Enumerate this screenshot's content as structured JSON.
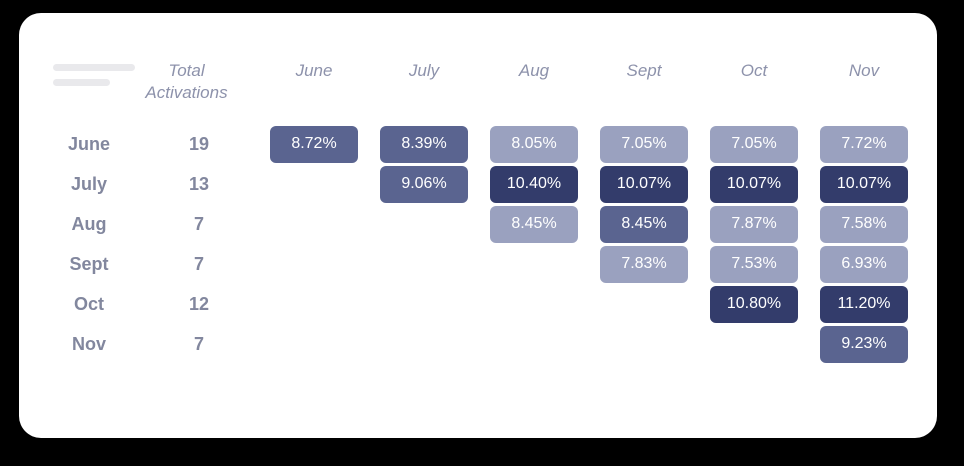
{
  "page": {
    "background": "#000000",
    "card_background": "#ffffff"
  },
  "colors": {
    "light": "#9aa1bf",
    "medium": "#5a6490",
    "dark": "#333c6b",
    "header_text": "#8d92ab",
    "label_text": "#82879e",
    "skeleton_bar": "#e9e9ec"
  },
  "header": {
    "total_label": "Total Activations",
    "months": [
      "June",
      "July",
      "Aug",
      "Sept",
      "Oct",
      "Nov"
    ]
  },
  "rows": [
    {
      "label": "June",
      "total": "19",
      "cells": [
        {
          "value": "8.72%",
          "shade": "medium"
        },
        {
          "value": "8.39%",
          "shade": "medium"
        },
        {
          "value": "8.05%",
          "shade": "light"
        },
        {
          "value": "7.05%",
          "shade": "light"
        },
        {
          "value": "7.05%",
          "shade": "light"
        },
        {
          "value": "7.72%",
          "shade": "light"
        }
      ]
    },
    {
      "label": "July",
      "total": "13",
      "cells": [
        null,
        {
          "value": "9.06%",
          "shade": "medium"
        },
        {
          "value": "10.40%",
          "shade": "dark"
        },
        {
          "value": "10.07%",
          "shade": "dark"
        },
        {
          "value": "10.07%",
          "shade": "dark"
        },
        {
          "value": "10.07%",
          "shade": "dark"
        }
      ]
    },
    {
      "label": "Aug",
      "total": "7",
      "cells": [
        null,
        null,
        {
          "value": "8.45%",
          "shade": "light"
        },
        {
          "value": "8.45%",
          "shade": "medium"
        },
        {
          "value": "7.87%",
          "shade": "light"
        },
        {
          "value": "7.58%",
          "shade": "light"
        }
      ]
    },
    {
      "label": "Sept",
      "total": "7",
      "cells": [
        null,
        null,
        null,
        {
          "value": "7.83%",
          "shade": "light"
        },
        {
          "value": "7.53%",
          "shade": "light"
        },
        {
          "value": "6.93%",
          "shade": "light"
        }
      ]
    },
    {
      "label": "Oct",
      "total": "12",
      "cells": [
        null,
        null,
        null,
        null,
        {
          "value": "10.80%",
          "shade": "dark"
        },
        {
          "value": "11.20%",
          "shade": "dark"
        }
      ]
    },
    {
      "label": "Nov",
      "total": "7",
      "cells": [
        null,
        null,
        null,
        null,
        null,
        {
          "value": "9.23%",
          "shade": "medium"
        }
      ]
    }
  ],
  "chart_data": {
    "type": "heatmap",
    "title": "",
    "row_header": "Total Activations",
    "columns": [
      "June",
      "July",
      "Aug",
      "Sept",
      "Oct",
      "Nov"
    ],
    "cohorts": [
      "June",
      "July",
      "Aug",
      "Sept",
      "Oct",
      "Nov"
    ],
    "total_activations": [
      19,
      13,
      7,
      7,
      12,
      7
    ],
    "values_percent": [
      [
        8.72,
        8.39,
        8.05,
        7.05,
        7.05,
        7.72
      ],
      [
        null,
        9.06,
        10.4,
        10.07,
        10.07,
        10.07
      ],
      [
        null,
        null,
        8.45,
        8.45,
        7.87,
        7.58
      ],
      [
        null,
        null,
        null,
        7.83,
        7.53,
        6.93
      ],
      [
        null,
        null,
        null,
        null,
        10.8,
        11.2
      ],
      [
        null,
        null,
        null,
        null,
        null,
        9.23
      ]
    ],
    "shade_scale": {
      "light": "#9aa1bf",
      "medium": "#5a6490",
      "dark": "#333c6b"
    },
    "legend": "off",
    "grid": "off"
  }
}
